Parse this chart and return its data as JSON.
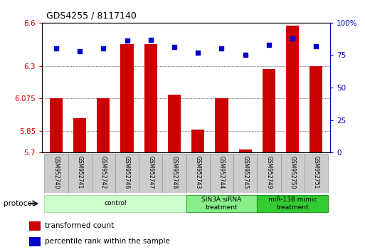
{
  "title": "GDS4255 / 8117140",
  "samples": [
    "GSM952740",
    "GSM952741",
    "GSM952742",
    "GSM952746",
    "GSM952747",
    "GSM952748",
    "GSM952743",
    "GSM952744",
    "GSM952745",
    "GSM952749",
    "GSM952750",
    "GSM952751"
  ],
  "bar_values": [
    6.075,
    5.94,
    6.075,
    6.45,
    6.45,
    6.1,
    5.86,
    6.075,
    5.72,
    6.28,
    6.58,
    6.3
  ],
  "percentile_values": [
    80,
    78,
    80,
    86,
    87,
    81,
    77,
    80,
    75,
    83,
    88,
    82
  ],
  "ymin": 5.7,
  "ymax": 6.6,
  "yticks": [
    5.7,
    5.85,
    6.075,
    6.3,
    6.6
  ],
  "ytick_labels": [
    "5.7",
    "5.85",
    "6.075",
    "6.3",
    "6.6"
  ],
  "right_yticks": [
    0,
    25,
    50,
    75,
    100
  ],
  "right_ytick_labels": [
    "0",
    "25",
    "50",
    "75",
    "100%"
  ],
  "bar_color": "#cc0000",
  "dot_color": "#0000cc",
  "protocol_groups": [
    {
      "label": "control",
      "start": 0,
      "end": 6,
      "color": "#ccffcc",
      "border": "#aaddaa"
    },
    {
      "label": "SIN3A siRNA\ntreatment",
      "start": 6,
      "end": 9,
      "color": "#88ee88",
      "border": "#44aa44"
    },
    {
      "label": "miR-138 mimic\ntreatment",
      "start": 9,
      "end": 12,
      "color": "#33cc33",
      "border": "#229922"
    }
  ],
  "legend_bar_label": "transformed count",
  "legend_dot_label": "percentile rank within the sample",
  "protocol_label": "protocol",
  "bar_width": 0.55
}
